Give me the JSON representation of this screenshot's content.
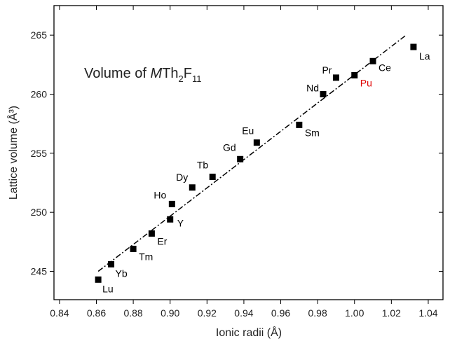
{
  "chart_data": {
    "type": "scatter",
    "title": {
      "parts": [
        "Volume of ",
        "M",
        "Th",
        "2",
        "F",
        "11"
      ]
    },
    "x_label": "Ionic radii (Å)",
    "y_label": "Lattice volume (Å³)",
    "xlim": [
      0.837,
      1.048
    ],
    "ylim": [
      242.6,
      267.5
    ],
    "xticks": [
      0.84,
      0.86,
      0.88,
      {
        "value": 0.9,
        "label": "0.90"
      },
      0.92,
      0.94,
      0.96,
      0.98,
      {
        "value": 1.0,
        "label": "1.00"
      },
      1.02,
      1.04
    ],
    "yticks": [
      245,
      250,
      255,
      260,
      265
    ],
    "series": [
      {
        "color": "#000000",
        "labels": [
          "Lu",
          "Yb",
          "Tm",
          "Er",
          "Y",
          "Ho",
          "Dy",
          "Tb",
          "Gd",
          "Eu",
          "Sm",
          "Nd",
          "Pr",
          "Pu",
          "Ce",
          "La"
        ],
        "label_colors": [
          "#000000",
          "#000000",
          "#000000",
          "#000000",
          "#000000",
          "#000000",
          "#000000",
          "#000000",
          "#000000",
          "#000000",
          "#000000",
          "#000000",
          "#000000",
          "#e00000",
          "#000000",
          "#000000"
        ],
        "x": [
          0.861,
          0.868,
          0.88,
          0.89,
          0.9,
          0.901,
          0.912,
          0.923,
          0.938,
          0.947,
          0.97,
          0.983,
          0.99,
          1.0,
          1.01,
          1.032
        ],
        "values": [
          244.3,
          245.6,
          246.9,
          248.2,
          249.4,
          250.7,
          252.1,
          253.0,
          254.5,
          255.9,
          257.4,
          260.0,
          261.4,
          261.6,
          262.8,
          264.0
        ]
      }
    ],
    "fit_line": {
      "color": "#000000",
      "x": [
        0.861,
        1.028
      ],
      "values": [
        245.0,
        265.0
      ]
    }
  }
}
